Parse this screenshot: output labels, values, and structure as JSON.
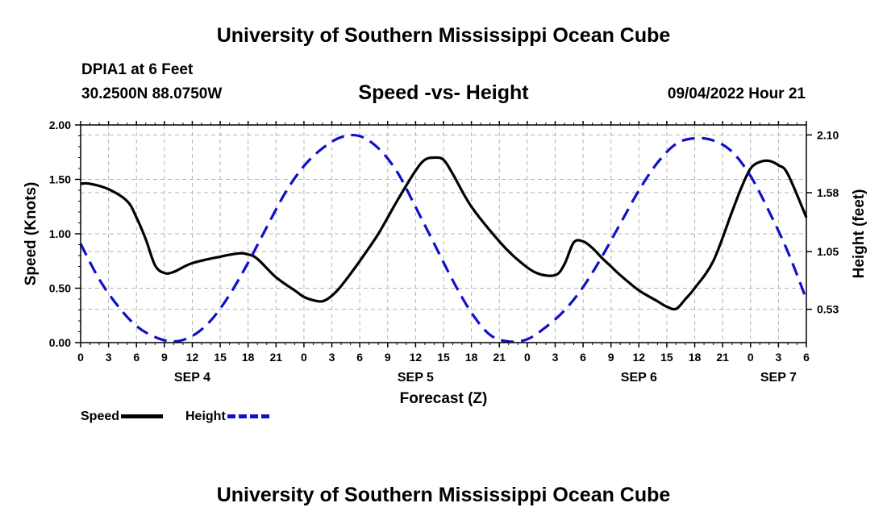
{
  "header": {
    "title_top": "University of Southern Mississippi Ocean Cube",
    "title_bottom": "University of Southern Mississippi Ocean Cube",
    "station": "DPIA1 at 6 Feet",
    "coords": "30.2500N  88.0750W",
    "chart_title": "Speed -vs- Height",
    "datetime": "09/04/2022 Hour 21"
  },
  "legend": {
    "speed_label": "Speed",
    "height_label": "Height"
  },
  "colors": {
    "speed": "#000000",
    "height": "#1010c8",
    "grid": "#b4b4b4"
  },
  "chart_data": {
    "type": "line",
    "title": "Speed -vs- Height",
    "xlabel": "Forecast (Z)",
    "ylabel": "Speed (Knots)",
    "y2label": "Height (feet)",
    "xlim": [
      0,
      78
    ],
    "ylim": [
      0,
      2.0
    ],
    "y2lim": [
      0.23,
      2.19
    ],
    "x_ticks": [
      0,
      3,
      6,
      9,
      12,
      15,
      18,
      21,
      24,
      27,
      30,
      33,
      36,
      39,
      42,
      45,
      48,
      51,
      54,
      57,
      60,
      63,
      66,
      69,
      72,
      75,
      78
    ],
    "x_tick_labels": [
      "0",
      "3",
      "6",
      "9",
      "12",
      "15",
      "18",
      "21",
      "0",
      "3",
      "6",
      "9",
      "12",
      "15",
      "18",
      "21",
      "0",
      "3",
      "6",
      "9",
      "12",
      "15",
      "18",
      "21",
      "0",
      "3",
      "6"
    ],
    "day_labels": [
      {
        "x": 12,
        "label": "SEP 4"
      },
      {
        "x": 36,
        "label": "SEP 5"
      },
      {
        "x": 60,
        "label": "SEP 6"
      },
      {
        "x": 75,
        "label": "SEP 7"
      }
    ],
    "y_ticks": [
      0.0,
      0.5,
      1.0,
      1.5,
      2.0
    ],
    "y_tick_labels": [
      "0.00",
      "0.50",
      "1.00",
      "1.50",
      "2.00"
    ],
    "y2_ticks": [
      0.53,
      1.05,
      1.58,
      2.1
    ],
    "y2_tick_labels": [
      "0.53",
      "1.05",
      "1.58",
      "2.10"
    ],
    "grid": true,
    "legend_position": "bottom-left",
    "series": [
      {
        "name": "Speed",
        "axis": "left",
        "style": "solid",
        "x": [
          0,
          1,
          3,
          5,
          6,
          7,
          8,
          9,
          10,
          12,
          15,
          17,
          18,
          19,
          21,
          23,
          24,
          25,
          26,
          27,
          28,
          30,
          32,
          34,
          36,
          37,
          38,
          39,
          40,
          42,
          45,
          47,
          49,
          51,
          52,
          53,
          54,
          55,
          56,
          57,
          58,
          60,
          62,
          63,
          64,
          65,
          66,
          68,
          70,
          71,
          72,
          73,
          74,
          75,
          76,
          78
        ],
        "values": [
          1.46,
          1.46,
          1.41,
          1.3,
          1.15,
          0.95,
          0.71,
          0.64,
          0.65,
          0.73,
          0.79,
          0.82,
          0.81,
          0.77,
          0.6,
          0.48,
          0.42,
          0.39,
          0.38,
          0.43,
          0.52,
          0.75,
          1.0,
          1.3,
          1.58,
          1.68,
          1.7,
          1.68,
          1.55,
          1.25,
          0.93,
          0.76,
          0.64,
          0.62,
          0.72,
          0.92,
          0.93,
          0.87,
          0.78,
          0.7,
          0.62,
          0.48,
          0.38,
          0.33,
          0.31,
          0.4,
          0.5,
          0.75,
          1.2,
          1.42,
          1.6,
          1.66,
          1.67,
          1.63,
          1.55,
          1.15
        ]
      },
      {
        "name": "Height",
        "axis": "right",
        "style": "dashed",
        "x": [
          0,
          2,
          4,
          6,
          8,
          10,
          12,
          14,
          16,
          18,
          20,
          22,
          24,
          26,
          28,
          30,
          32,
          34,
          36,
          38,
          40,
          42,
          44,
          46,
          48,
          50,
          52,
          54,
          56,
          58,
          60,
          62,
          64,
          66,
          68,
          70,
          72,
          74,
          76,
          78
        ],
        "values": [
          1.12,
          0.8,
          0.56,
          0.38,
          0.28,
          0.24,
          0.29,
          0.43,
          0.66,
          0.95,
          1.27,
          1.58,
          1.82,
          1.98,
          2.08,
          2.09,
          1.98,
          1.77,
          1.45,
          1.12,
          0.79,
          0.5,
          0.3,
          0.24,
          0.26,
          0.37,
          0.52,
          0.73,
          1.0,
          1.3,
          1.6,
          1.85,
          2.02,
          2.07,
          2.05,
          1.95,
          1.73,
          1.41,
          1.05,
          0.62
        ]
      }
    ]
  }
}
